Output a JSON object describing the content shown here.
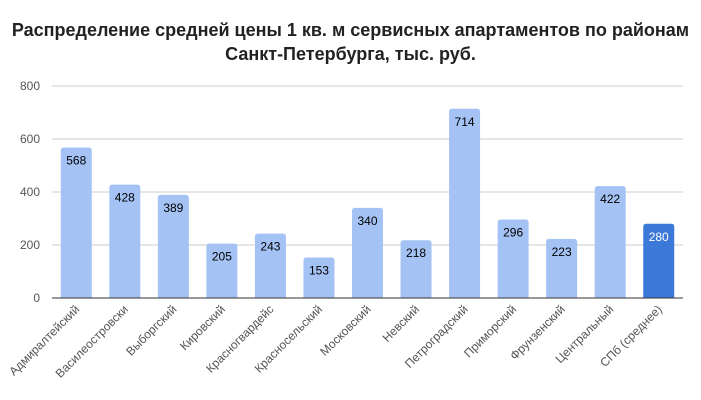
{
  "chart_data": {
    "type": "bar",
    "title_lines": [
      "Распределение средней цены 1 кв. м сервисных апартаментов по районам",
      "Санкт-Петербурга, тыс. руб."
    ],
    "categories": [
      "Адмиралтейский",
      "Василеостровски",
      "Выборгский",
      "Кировский",
      "Красногвардейс",
      "Красносельский",
      "Московский",
      "Невский",
      "Петроградский",
      "Приморский",
      "Фрунзенский",
      "Центральный",
      "СПб (среднее)"
    ],
    "values": [
      568,
      428,
      389,
      205,
      243,
      153,
      340,
      218,
      714,
      296,
      223,
      422,
      280
    ],
    "highlight_index": 12,
    "ylim": [
      0,
      800
    ],
    "yticks": [
      0,
      200,
      400,
      600,
      800
    ],
    "grid": true,
    "legend": "none",
    "colors": {
      "bar": "#a4c2f4",
      "highlight": "#3c78d8",
      "label": "#000000",
      "highlight_label": "#ffffff",
      "grid": "#cccccc",
      "axis": "#333333"
    }
  }
}
